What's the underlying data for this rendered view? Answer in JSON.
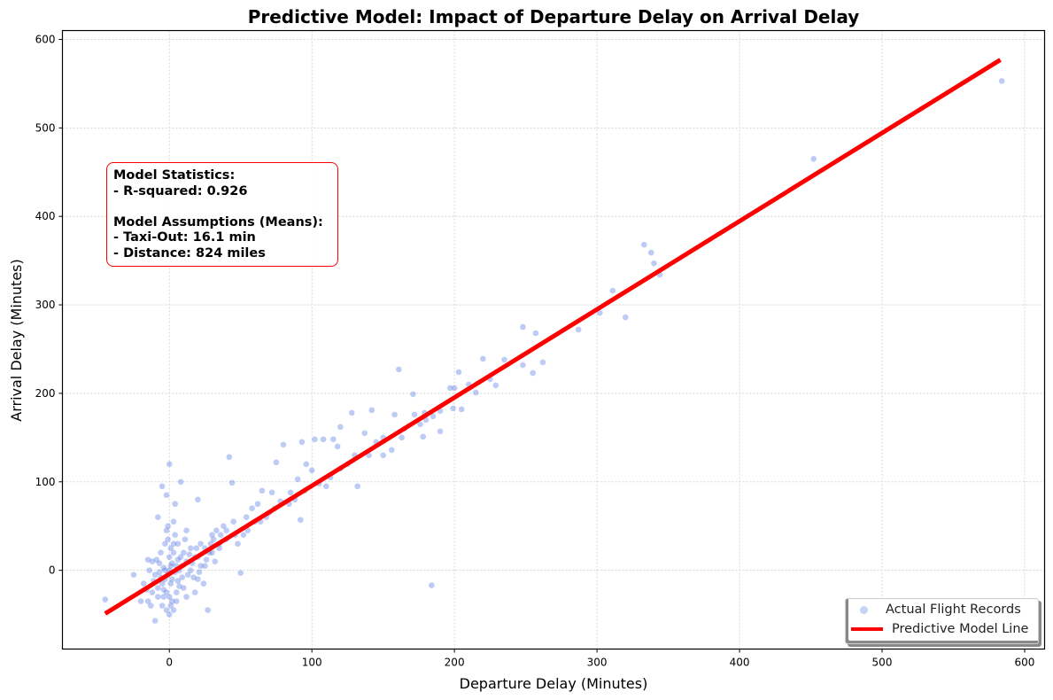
{
  "chart_data": {
    "type": "scatter",
    "title": "Predictive Model: Impact of Departure Delay on Arrival Delay",
    "xlabel": "Departure Delay (Minutes)",
    "ylabel": "Arrival Delay (Minutes)",
    "xlim": [
      -75,
      614
    ],
    "ylim": [
      -89,
      610
    ],
    "xticks": [
      0,
      100,
      200,
      300,
      400,
      500,
      600
    ],
    "yticks": [
      0,
      100,
      200,
      300,
      400,
      500,
      600
    ],
    "grid": true,
    "legend_position": "bottom-right",
    "series": [
      {
        "name": "Actual Flight Records",
        "kind": "scatter",
        "color": "#4169e1",
        "points": [
          [
            584,
            553
          ],
          [
            452,
            465
          ],
          [
            333,
            368
          ],
          [
            338,
            359
          ],
          [
            340,
            347
          ],
          [
            344,
            334
          ],
          [
            311,
            316
          ],
          [
            320,
            286
          ],
          [
            302,
            291
          ],
          [
            287,
            272
          ],
          [
            248,
            275
          ],
          [
            257,
            268
          ],
          [
            262,
            235
          ],
          [
            255,
            223
          ],
          [
            248,
            232
          ],
          [
            235,
            238
          ],
          [
            220,
            239
          ],
          [
            229,
            209
          ],
          [
            225,
            216
          ],
          [
            203,
            224
          ],
          [
            200,
            206
          ],
          [
            197,
            206
          ],
          [
            205,
            182
          ],
          [
            210,
            210
          ],
          [
            215,
            201
          ],
          [
            199,
            183
          ],
          [
            190,
            157
          ],
          [
            185,
            174
          ],
          [
            179,
            178
          ],
          [
            176,
            165
          ],
          [
            178,
            151
          ],
          [
            171,
            199
          ],
          [
            172,
            176
          ],
          [
            161,
            227
          ],
          [
            158,
            176
          ],
          [
            163,
            150
          ],
          [
            156,
            136
          ],
          [
            150,
            130
          ],
          [
            145,
            145
          ],
          [
            142,
            181
          ],
          [
            137,
            155
          ],
          [
            128,
            178
          ],
          [
            132,
            95
          ],
          [
            130,
            130
          ],
          [
            125,
            120
          ],
          [
            120,
            162
          ],
          [
            118,
            140
          ],
          [
            115,
            148
          ],
          [
            113,
            105
          ],
          [
            108,
            148
          ],
          [
            105,
            98
          ],
          [
            102,
            148
          ],
          [
            100,
            113
          ],
          [
            96,
            120
          ],
          [
            93,
            145
          ],
          [
            90,
            103
          ],
          [
            92,
            57
          ],
          [
            88,
            80
          ],
          [
            85,
            88
          ],
          [
            80,
            142
          ],
          [
            78,
            78
          ],
          [
            75,
            122
          ],
          [
            72,
            88
          ],
          [
            70,
            65
          ],
          [
            68,
            60
          ],
          [
            65,
            90
          ],
          [
            62,
            75
          ],
          [
            60,
            55
          ],
          [
            55,
            45
          ],
          [
            58,
            70
          ],
          [
            52,
            40
          ],
          [
            50,
            -3
          ],
          [
            48,
            30
          ],
          [
            45,
            55
          ],
          [
            42,
            128
          ],
          [
            44,
            99
          ],
          [
            40,
            35
          ],
          [
            38,
            50
          ],
          [
            35,
            25
          ],
          [
            32,
            10
          ],
          [
            30,
            40
          ],
          [
            28,
            20
          ],
          [
            27,
            -45
          ],
          [
            25,
            5
          ],
          [
            22,
            30
          ],
          [
            20,
            80
          ],
          [
            20,
            -10
          ],
          [
            18,
            15
          ],
          [
            15,
            25
          ],
          [
            12,
            10
          ],
          [
            10,
            -20
          ],
          [
            8,
            100
          ],
          [
            5,
            5
          ],
          [
            3,
            30
          ],
          [
            0,
            120
          ],
          [
            -2,
            85
          ],
          [
            -5,
            95
          ],
          [
            -45,
            -33
          ],
          [
            184,
            -17
          ],
          [
            -10,
            -57
          ],
          [
            -15,
            -35
          ],
          [
            -12,
            10
          ],
          [
            -8,
            -20
          ],
          [
            -5,
            -40
          ],
          [
            -3,
            0
          ],
          [
            0,
            -30
          ],
          [
            2,
            -10
          ],
          [
            5,
            -25
          ],
          [
            -6,
            20
          ],
          [
            -10,
            -5
          ],
          [
            0,
            15
          ],
          [
            7,
            0
          ],
          [
            10,
            20
          ],
          [
            13,
            -5
          ],
          [
            -2,
            45
          ],
          [
            3,
            -45
          ],
          [
            15,
            0
          ],
          [
            20,
            15
          ],
          [
            25,
            25
          ],
          [
            30,
            20
          ],
          [
            35,
            30
          ],
          [
            40,
            45
          ],
          [
            -18,
            -15
          ],
          [
            -20,
            -35
          ],
          [
            -15,
            12
          ],
          [
            -25,
            -5
          ],
          [
            -8,
            60
          ],
          [
            4,
            75
          ],
          [
            12,
            -30
          ],
          [
            18,
            -25
          ],
          [
            0,
            -50
          ],
          [
            -3,
            -10
          ],
          [
            1,
            5
          ],
          [
            6,
            12
          ],
          [
            9,
            -8
          ],
          [
            -4,
            -22
          ],
          [
            -7,
            8
          ],
          [
            2,
            -35
          ],
          [
            3,
            55
          ],
          [
            -12,
            -25
          ],
          [
            11,
            35
          ],
          [
            16,
            8
          ],
          [
            22,
            5
          ],
          [
            24,
            -15
          ],
          [
            33,
            45
          ],
          [
            46,
            40
          ],
          [
            54,
            60
          ],
          [
            64,
            55
          ],
          [
            74,
            70
          ],
          [
            84,
            75
          ],
          [
            95,
            90
          ],
          [
            110,
            95
          ],
          [
            120,
            115
          ],
          [
            140,
            130
          ],
          [
            150,
            150
          ],
          [
            165,
            160
          ],
          [
            180,
            170
          ],
          [
            190,
            180
          ],
          [
            -1,
            -5
          ],
          [
            1,
            -15
          ],
          [
            -2,
            -25
          ],
          [
            2,
            8
          ],
          [
            4,
            -2
          ],
          [
            -4,
            3
          ],
          [
            6,
            -12
          ],
          [
            -6,
            -8
          ],
          [
            8,
            15
          ],
          [
            -8,
            -30
          ],
          [
            3,
            20
          ],
          [
            -3,
            30
          ],
          [
            5,
            -35
          ],
          [
            -5,
            -15
          ],
          [
            0,
            0
          ],
          [
            1,
            25
          ],
          [
            -1,
            35
          ],
          [
            7,
            -18
          ],
          [
            -7,
            -2
          ],
          [
            9,
            5
          ],
          [
            14,
            18
          ],
          [
            17,
            -8
          ],
          [
            19,
            25
          ],
          [
            21,
            -2
          ],
          [
            26,
            12
          ],
          [
            29,
            30
          ],
          [
            31,
            35
          ],
          [
            36,
            40
          ],
          [
            -11,
            -12
          ],
          [
            -13,
            -40
          ],
          [
            -9,
            12
          ],
          [
            -14,
            0
          ],
          [
            -16,
            -22
          ],
          [
            -2,
            -45
          ],
          [
            1,
            -40
          ],
          [
            4,
            40
          ],
          [
            -1,
            50
          ],
          [
            6,
            30
          ],
          [
            12,
            45
          ],
          [
            -4,
            -30
          ]
        ]
      },
      {
        "name": "Predictive Model Line",
        "kind": "line",
        "color": "#ff0000",
        "x": [
          -45,
          583
        ],
        "y": [
          -49,
          577
        ]
      }
    ],
    "annotation": {
      "lines": [
        "Model Statistics:",
        "- R-squared: 0.926",
        "",
        "Model Assumptions (Means):",
        "- Taxi-Out: 16.1 min",
        "- Distance: 824 miles"
      ]
    }
  }
}
